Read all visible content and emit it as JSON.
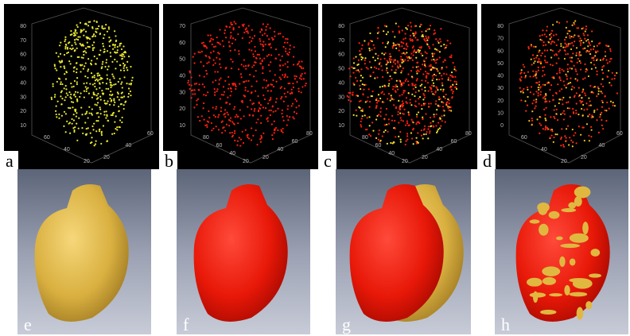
{
  "point_cloud_panels": [
    {
      "label": "a",
      "left_ticks": [
        80,
        70,
        60,
        50,
        40,
        30,
        20,
        10
      ],
      "bottom_left_ticks": [
        60,
        40,
        20
      ],
      "bottom_right_ticks": [
        20,
        40,
        60
      ]
    },
    {
      "label": "b",
      "left_ticks": [
        70,
        60,
        50,
        40,
        30,
        20,
        10
      ],
      "bottom_left_ticks": [
        80,
        60,
        40,
        20
      ],
      "bottom_right_ticks": [
        20,
        40,
        60,
        80
      ]
    },
    {
      "label": "c",
      "left_ticks": [
        80,
        70,
        60,
        50,
        40,
        30,
        20,
        10
      ],
      "bottom_left_ticks": [
        80,
        60,
        40,
        20
      ],
      "bottom_right_ticks": [
        20,
        40,
        60,
        80
      ]
    },
    {
      "label": "d",
      "left_ticks": [
        80,
        70,
        60,
        50,
        40,
        30,
        20,
        10,
        0
      ],
      "bottom_left_ticks": [
        60,
        40,
        20
      ],
      "bottom_right_ticks": [
        20,
        40,
        60
      ]
    }
  ],
  "surface_panels": [
    {
      "label": "e"
    },
    {
      "label": "f"
    },
    {
      "label": "g"
    },
    {
      "label": "h"
    }
  ]
}
